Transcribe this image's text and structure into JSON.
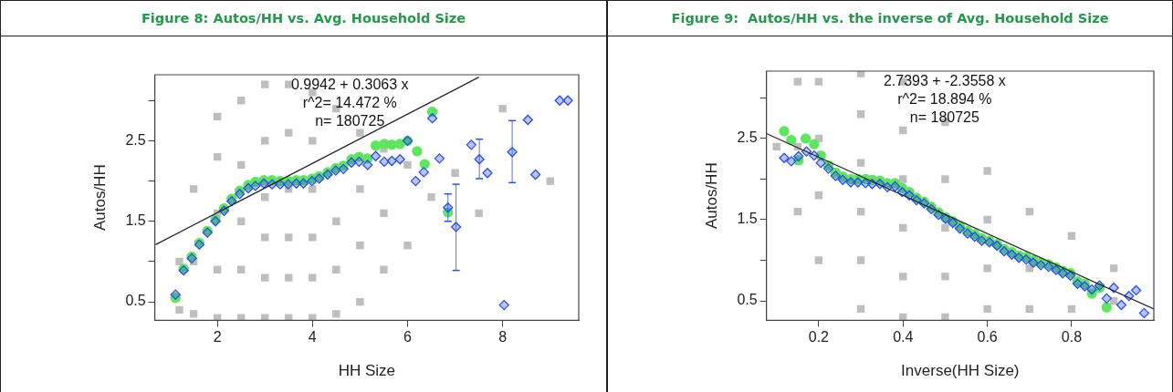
{
  "chart_data": [
    {
      "type": "scatter",
      "title": "Figure 8: Autos/HH vs. Avg. Household Size",
      "xlabel": "HH Size",
      "ylabel": "Autos/HH",
      "xlim": [
        0.685,
        9.6
      ],
      "ylim": [
        0.27,
        3.32
      ],
      "xticks": [
        2,
        4,
        6,
        8
      ],
      "yticks": [
        0.5,
        {
          "value": 1,
          "label": null
        },
        1.5,
        {
          "value": 2,
          "label": null
        },
        2.5,
        {
          "value": 3,
          "label": null
        }
      ],
      "annotations": [
        "0.9942 + 0.3063 x",
        "r^2= 14.472 %",
        "n= 180725"
      ],
      "series": [
        {
          "marker": "square",
          "color": "#bebebe",
          "x": [
            1.2,
            1.2,
            1.5,
            1.5,
            1.5,
            2,
            2,
            2,
            2,
            2,
            2.5,
            2.5,
            2.5,
            2.5,
            2.5,
            3,
            3,
            3,
            3,
            3,
            3,
            3.5,
            3.5,
            3.5,
            3.5,
            3.5,
            3.5,
            4,
            4,
            4,
            4,
            4,
            4,
            4.5,
            4.5,
            4.5,
            4.5,
            5,
            5,
            5,
            5,
            5.5,
            5.5,
            5.5,
            6,
            6,
            6.5,
            7,
            7.5,
            8,
            9
          ],
          "values": [
            0.4,
            1.0,
            0.35,
            1.0,
            1.9,
            0.3,
            0.9,
            1.6,
            2.3,
            2.8,
            0.3,
            0.9,
            1.5,
            2.2,
            3.0,
            0.3,
            0.8,
            1.3,
            1.8,
            2.5,
            3.2,
            0.3,
            0.8,
            1.3,
            1.9,
            2.6,
            3.2,
            0.3,
            0.8,
            1.3,
            1.9,
            2.5,
            3.1,
            0.35,
            0.9,
            1.5,
            2.9,
            0.5,
            1.2,
            1.9,
            2.6,
            0.9,
            1.6,
            2.4,
            1.2,
            2.2,
            1.8,
            2.1,
            1.6,
            2.9,
            2.0
          ]
        },
        {
          "marker": "circle",
          "color": "#5ee65e",
          "x": [
            1.12,
            1.29,
            1.46,
            1.62,
            1.79,
            1.96,
            2.14,
            2.3,
            2.47,
            2.65,
            2.8,
            2.98,
            3.15,
            3.32,
            3.49,
            3.66,
            3.81,
            3.99,
            4.14,
            4.32,
            4.49,
            4.65,
            4.82,
            4.98,
            5.16,
            5.33,
            5.51,
            5.67,
            5.84,
            6.0,
            6.2,
            6.36,
            6.52,
            6.85
          ],
          "values": [
            0.55,
            0.91,
            1.06,
            1.23,
            1.38,
            1.52,
            1.66,
            1.78,
            1.88,
            1.95,
            1.99,
            2.01,
            2.01,
            2.0,
            2.0,
            2.01,
            2.01,
            2.03,
            2.06,
            2.11,
            2.16,
            2.19,
            2.27,
            2.3,
            2.28,
            2.44,
            2.46,
            2.45,
            2.46,
            2.5,
            2.37,
            2.21,
            2.86,
            1.61
          ]
        },
        {
          "marker": "diamond",
          "color": "#2b4ff0",
          "x": [
            1.12,
            1.29,
            1.46,
            1.62,
            1.79,
            1.96,
            2.14,
            2.3,
            2.47,
            2.65,
            2.8,
            2.98,
            3.15,
            3.32,
            3.49,
            3.66,
            3.81,
            3.99,
            4.14,
            4.32,
            4.49,
            4.65,
            4.82,
            4.98,
            5.16,
            5.33,
            5.51,
            5.67,
            5.84,
            6.0,
            6.17,
            6.34,
            6.52,
            6.67,
            6.85,
            7.02,
            7.34,
            7.51,
            7.68,
            8.03,
            8.2,
            8.53,
            8.69,
            9.2,
            9.37
          ],
          "values": [
            0.59,
            0.89,
            1.04,
            1.21,
            1.36,
            1.5,
            1.63,
            1.75,
            1.84,
            1.91,
            1.94,
            1.97,
            1.96,
            1.96,
            1.96,
            1.97,
            1.97,
            2.0,
            2.03,
            2.08,
            2.13,
            2.15,
            2.23,
            2.24,
            2.2,
            2.31,
            2.24,
            2.25,
            2.27,
            2.5,
            2.0,
            2.11,
            2.78,
            2.28,
            1.67,
            1.43,
            2.45,
            2.27,
            2.1,
            0.46,
            2.36,
            2.76,
            2.08,
            3.0,
            3.0
          ],
          "errors": [
            null,
            null,
            null,
            null,
            null,
            null,
            null,
            null,
            null,
            null,
            null,
            null,
            null,
            null,
            null,
            null,
            null,
            null,
            null,
            null,
            null,
            null,
            null,
            null,
            null,
            null,
            null,
            null,
            null,
            null,
            null,
            null,
            null,
            null,
            [
              1.5,
              1.84
            ],
            [
              0.89,
              1.96
            ],
            null,
            [
              2.03,
              2.52
            ],
            null,
            null,
            [
              1.98,
              2.75
            ],
            null,
            null,
            null,
            null
          ]
        },
        {
          "type": "line",
          "marker": "none",
          "color": "#222222",
          "x": [
            0.7,
            7.5
          ],
          "values": [
            1.21,
            3.29
          ]
        }
      ]
    },
    {
      "type": "scatter",
      "title": "Figure 9:  Autos/HH vs. the inverse of Avg. Household Size",
      "xlabel": "Inverse(HH Size)",
      "ylabel": "Autos/HH",
      "xlim": [
        0.076,
        0.995
      ],
      "ylim": [
        0.26,
        3.33
      ],
      "xticks": [
        0.2,
        0.4,
        0.6,
        0.8
      ],
      "yticks": [
        0.5,
        {
          "value": 1,
          "label": null
        },
        1.5,
        {
          "value": 2,
          "label": null
        },
        2.5,
        {
          "value": 3,
          "label": null
        }
      ],
      "annotations": [
        "2.7393 + -2.3558 x",
        "r^2= 18.894 %",
        "n= 180725"
      ],
      "series": [
        {
          "marker": "square",
          "color": "#bebebe",
          "x": [
            0.1,
            0.15,
            0.15,
            0.15,
            0.2,
            0.2,
            0.2,
            0.2,
            0.3,
            0.3,
            0.3,
            0.3,
            0.3,
            0.3,
            0.4,
            0.4,
            0.4,
            0.4,
            0.4,
            0.4,
            0.5,
            0.5,
            0.5,
            0.5,
            0.5,
            0.6,
            0.6,
            0.6,
            0.6,
            0.7,
            0.7,
            0.7,
            0.8,
            0.8,
            0.9,
            0.9
          ],
          "values": [
            2.4,
            1.6,
            2.4,
            3.2,
            1.0,
            1.8,
            2.5,
            3.2,
            0.4,
            1.0,
            1.6,
            2.2,
            2.8,
            3.3,
            0.3,
            0.8,
            1.4,
            2.0,
            2.6,
            3.2,
            0.3,
            0.8,
            1.4,
            2.0,
            2.7,
            0.4,
            0.9,
            1.5,
            2.1,
            0.4,
            0.9,
            1.6,
            0.4,
            1.3,
            0.5,
            0.9
          ]
        },
        {
          "marker": "circle",
          "color": "#5ee65e",
          "x": [
            0.118,
            0.135,
            0.152,
            0.169,
            0.189,
            0.205,
            0.223,
            0.24,
            0.257,
            0.276,
            0.293,
            0.311,
            0.327,
            0.345,
            0.363,
            0.381,
            0.398,
            0.415,
            0.432,
            0.45,
            0.467,
            0.484,
            0.501,
            0.518,
            0.535,
            0.553,
            0.57,
            0.587,
            0.605,
            0.623,
            0.64,
            0.658,
            0.675,
            0.692,
            0.709,
            0.727,
            0.745,
            0.763,
            0.779,
            0.797,
            0.814,
            0.831,
            0.848,
            0.866,
            0.883
          ],
          "values": [
            2.59,
            2.48,
            2.23,
            2.5,
            2.43,
            2.29,
            2.17,
            2.08,
            2.03,
            2.0,
            2.0,
            2.0,
            1.99,
            1.98,
            1.95,
            1.95,
            1.89,
            1.84,
            1.77,
            1.72,
            1.66,
            1.59,
            1.53,
            1.48,
            1.42,
            1.36,
            1.32,
            1.27,
            1.24,
            1.2,
            1.14,
            1.1,
            1.06,
            1.04,
            1.0,
            0.97,
            0.95,
            0.91,
            0.87,
            0.84,
            0.74,
            0.71,
            0.59,
            0.66,
            0.42
          ]
        },
        {
          "marker": "diamond",
          "color": "#2b4ff0",
          "x": [
            0.118,
            0.135,
            0.152,
            0.171,
            0.189,
            0.205,
            0.223,
            0.24,
            0.257,
            0.276,
            0.293,
            0.311,
            0.327,
            0.345,
            0.363,
            0.381,
            0.398,
            0.415,
            0.432,
            0.45,
            0.467,
            0.484,
            0.501,
            0.518,
            0.535,
            0.553,
            0.57,
            0.587,
            0.605,
            0.623,
            0.64,
            0.658,
            0.675,
            0.692,
            0.709,
            0.727,
            0.745,
            0.763,
            0.779,
            0.797,
            0.814,
            0.831,
            0.848,
            0.866,
            0.883,
            0.9,
            0.918,
            0.936,
            0.953,
            0.972
          ],
          "values": [
            2.26,
            2.22,
            2.28,
            2.34,
            2.29,
            2.2,
            2.13,
            2.04,
            1.99,
            1.96,
            1.96,
            1.95,
            1.94,
            1.94,
            1.9,
            1.91,
            1.84,
            1.8,
            1.74,
            1.7,
            1.63,
            1.56,
            1.51,
            1.46,
            1.39,
            1.33,
            1.29,
            1.24,
            1.22,
            1.18,
            1.11,
            1.07,
            1.03,
            1.01,
            0.97,
            0.94,
            0.92,
            0.88,
            0.84,
            0.81,
            0.71,
            0.68,
            0.64,
            0.69,
            0.53,
            0.66,
            0.45,
            0.56,
            0.63,
            0.35
          ]
        },
        {
          "type": "line",
          "marker": "none",
          "color": "#222222",
          "x": [
            0.076,
            0.995
          ],
          "values": [
            2.56,
            0.4
          ]
        }
      ]
    }
  ]
}
